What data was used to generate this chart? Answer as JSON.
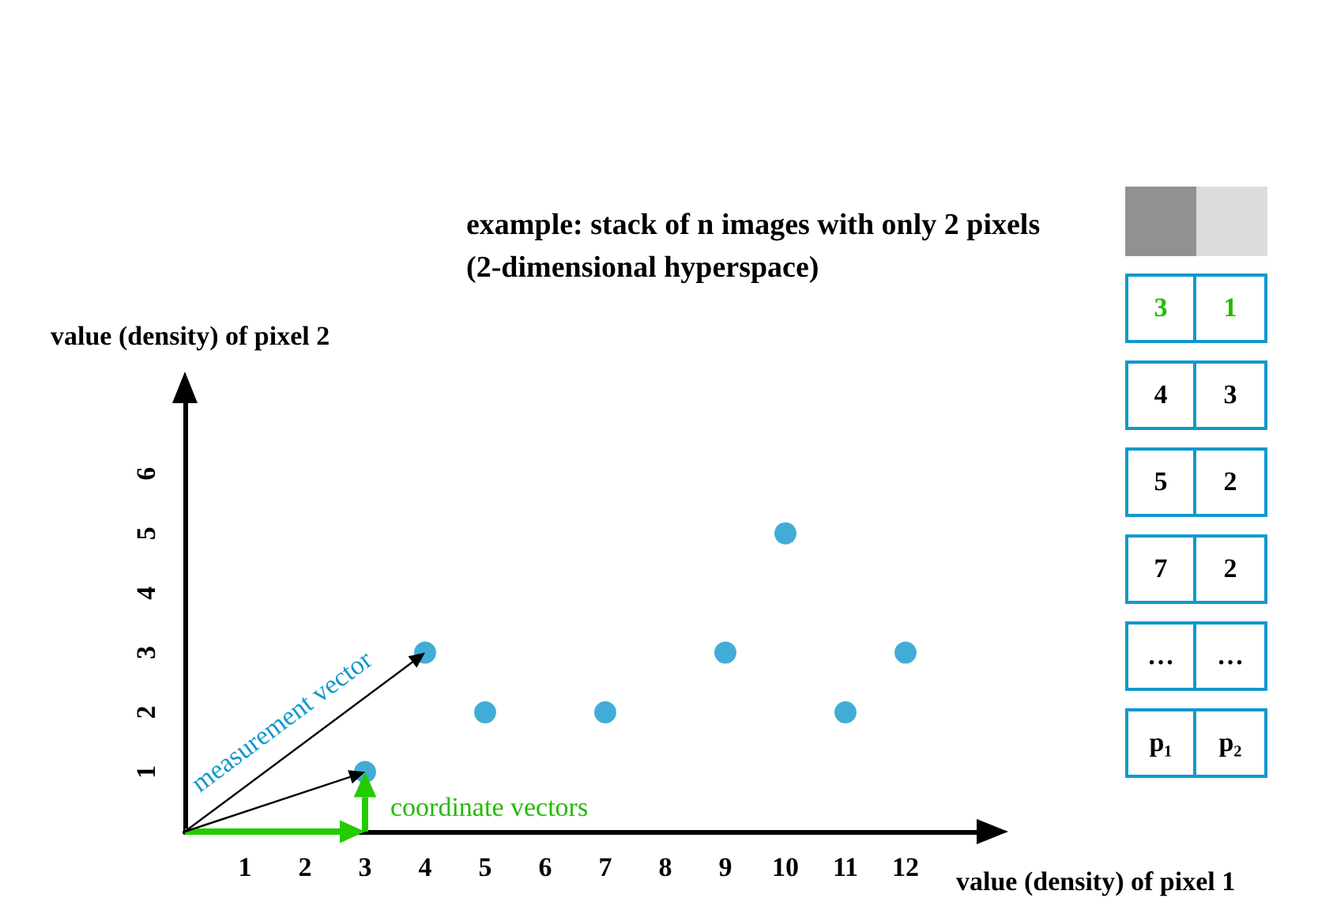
{
  "chart_data": [
    {
      "type": "scatter",
      "title": "example: stack of n images with only 2 pixels",
      "subtitle": "(2-dimensional hyperspace)",
      "xlabel": "value (density) of pixel 1",
      "ylabel": "value (density) of pixel 2",
      "x": [
        3,
        4,
        5,
        7,
        9,
        10,
        11,
        12
      ],
      "series": [
        {
          "color": "#1199cc",
          "values": [
            1,
            3,
            2,
            2,
            3,
            5,
            2,
            3
          ]
        }
      ],
      "xlim": [
        0,
        13.5
      ],
      "xticks": [
        1,
        2,
        3,
        4,
        5,
        6,
        7,
        8,
        9,
        10,
        11,
        12
      ],
      "ylim": [
        0,
        7.5
      ],
      "yticks": [
        1,
        2,
        3,
        4,
        5,
        6
      ],
      "grid": false,
      "marker": "circle",
      "annotations": [
        "measurement vector",
        "coordinate vectors"
      ]
    },
    {
      "type": "other",
      "annotations": [
        "3",
        "1",
        "4",
        "3",
        "5",
        "2",
        "7",
        "2",
        "…",
        "…",
        "p₁",
        "p₂"
      ],
      "colors": [
        "#22bb00",
        "#22bb00",
        "#000000",
        "#000000",
        "#000000",
        "#000000",
        "#000000",
        "#000000",
        "#000000",
        "#000000",
        "#000000",
        "#000000"
      ]
    }
  ]
}
